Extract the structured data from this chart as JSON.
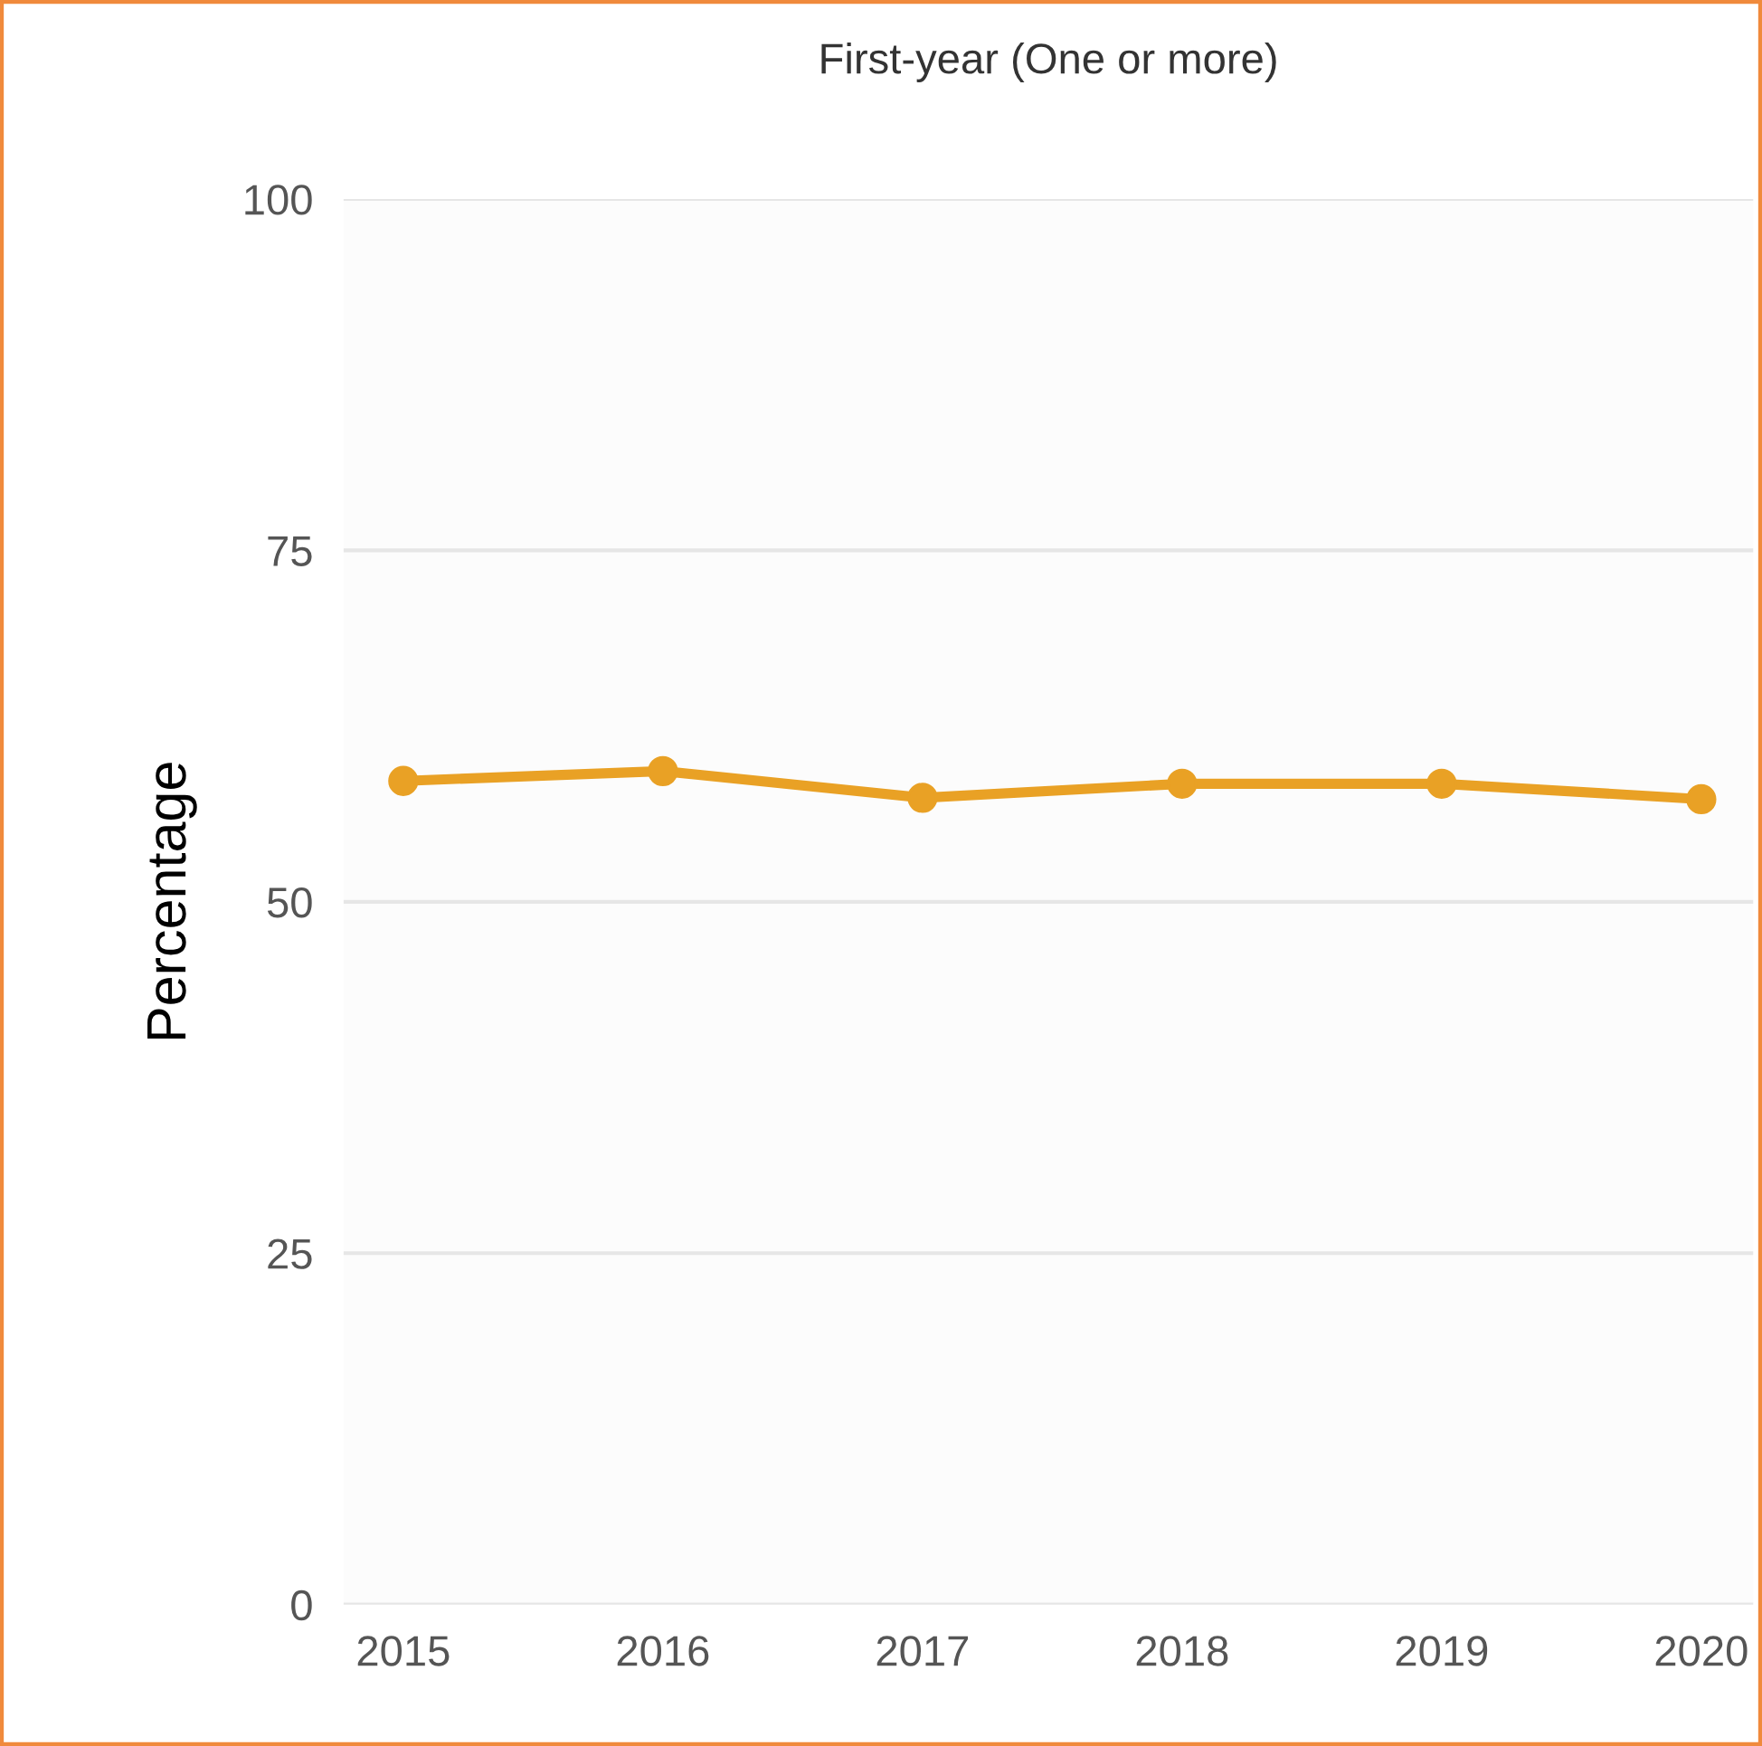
{
  "chart_data": {
    "type": "line",
    "title": "First-year (One or more)",
    "ylabel": "Percentage",
    "x": [
      2015,
      2016,
      2017,
      2018,
      2019,
      2020
    ],
    "series": [
      {
        "color": "#e9a125",
        "values": [
          58.6,
          59.3,
          57.4,
          58.4,
          58.4,
          57.3
        ]
      }
    ],
    "xlim": [
      2014.77,
      2020.2
    ],
    "xticks": [
      2015,
      2016,
      2017,
      2018,
      2019,
      2020
    ],
    "ylim": [
      0,
      100
    ],
    "yticks": [
      0,
      25,
      50,
      75,
      100
    ],
    "grid": "y",
    "marker": "circle",
    "line_style": "solid"
  }
}
